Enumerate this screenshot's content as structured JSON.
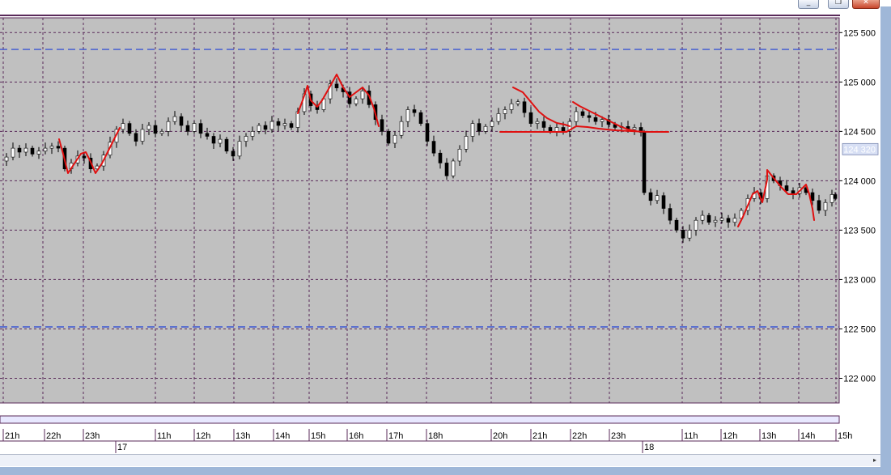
{
  "window": {
    "buttons": [
      {
        "name": "minimize-button",
        "glyph": "_"
      },
      {
        "name": "restore-button",
        "glyph": "❐"
      },
      {
        "name": "close-button",
        "glyph": "✕"
      }
    ]
  },
  "scrollbar": {
    "right_arrow": "▸"
  },
  "colors": {
    "plot_bg": "#c0c0c0",
    "grid": "#5a2a5a",
    "frame": "#5a2a5a",
    "level_line": "#1f3fd6",
    "bull_candle": "#ffffff",
    "bear_candle": "#000000",
    "annotation": "#e01010",
    "price_label_bg": "#d7dff4",
    "price_label_fg": "#ffffff"
  },
  "chart_data": {
    "type": "candlestick",
    "title": "",
    "ylim": [
      121750,
      125650
    ],
    "y_ticks": [
      "125 500",
      "125 000",
      "124 500",
      "124 000",
      "123 500",
      "123 000",
      "122 500",
      "122 000"
    ],
    "y_tick_values": [
      125500,
      125000,
      124500,
      124000,
      123500,
      123000,
      122500,
      122000
    ],
    "current_price_label": "124 320",
    "current_price": 124320,
    "horizontal_levels": [
      125330,
      122520
    ],
    "x_hour_labels": [
      "21h",
      "22h",
      "23h",
      "11h",
      "12h",
      "13h",
      "14h",
      "15h",
      "16h",
      "17h",
      "18h",
      "20h",
      "21h",
      "22h",
      "23h",
      "11h",
      "12h",
      "13h",
      "14h",
      "15h"
    ],
    "x_day_labels": [
      "17",
      "18"
    ],
    "price_path": [
      [
        0,
        124200
      ],
      [
        8,
        124240
      ],
      [
        16,
        124330
      ],
      [
        24,
        124290
      ],
      [
        32,
        124330
      ],
      [
        40,
        124270
      ],
      [
        48,
        124300
      ],
      [
        56,
        124330
      ],
      [
        64,
        124350
      ],
      [
        72,
        124330
      ],
      [
        80,
        124120
      ],
      [
        88,
        124180
      ],
      [
        96,
        124250
      ],
      [
        104,
        124230
      ],
      [
        112,
        124120
      ],
      [
        120,
        124150
      ],
      [
        128,
        124260
      ],
      [
        136,
        124390
      ],
      [
        144,
        124520
      ],
      [
        152,
        124580
      ],
      [
        160,
        124480
      ],
      [
        168,
        124400
      ],
      [
        176,
        124520
      ],
      [
        184,
        124560
      ],
      [
        192,
        124480
      ],
      [
        200,
        124500
      ],
      [
        208,
        124600
      ],
      [
        216,
        124650
      ],
      [
        224,
        124560
      ],
      [
        232,
        124500
      ],
      [
        240,
        124580
      ],
      [
        248,
        124480
      ],
      [
        256,
        124450
      ],
      [
        264,
        124380
      ],
      [
        272,
        124420
      ],
      [
        280,
        124300
      ],
      [
        288,
        124250
      ],
      [
        296,
        124400
      ],
      [
        304,
        124450
      ],
      [
        312,
        124500
      ],
      [
        320,
        124560
      ],
      [
        328,
        124520
      ],
      [
        336,
        124600
      ],
      [
        344,
        124560
      ],
      [
        352,
        124580
      ],
      [
        360,
        124540
      ],
      [
        368,
        124700
      ],
      [
        376,
        124880
      ],
      [
        384,
        124760
      ],
      [
        392,
        124720
      ],
      [
        400,
        124830
      ],
      [
        408,
        124980
      ],
      [
        416,
        124940
      ],
      [
        424,
        124900
      ],
      [
        432,
        124780
      ],
      [
        440,
        124830
      ],
      [
        448,
        124910
      ],
      [
        456,
        124770
      ],
      [
        464,
        124620
      ],
      [
        472,
        124500
      ],
      [
        480,
        124380
      ],
      [
        488,
        124460
      ],
      [
        496,
        124600
      ],
      [
        504,
        124720
      ],
      [
        512,
        124690
      ],
      [
        520,
        124580
      ],
      [
        528,
        124400
      ],
      [
        536,
        124280
      ],
      [
        544,
        124180
      ],
      [
        552,
        124050
      ],
      [
        560,
        124200
      ],
      [
        568,
        124320
      ],
      [
        576,
        124450
      ],
      [
        584,
        124580
      ],
      [
        592,
        124500
      ],
      [
        600,
        124550
      ],
      [
        608,
        124600
      ],
      [
        616,
        124680
      ],
      [
        624,
        124720
      ],
      [
        632,
        124780
      ],
      [
        640,
        124800
      ],
      [
        648,
        124690
      ],
      [
        656,
        124580
      ],
      [
        664,
        124600
      ],
      [
        672,
        124540
      ],
      [
        680,
        124500
      ],
      [
        688,
        124540
      ],
      [
        696,
        124500
      ],
      [
        704,
        124600
      ],
      [
        712,
        124700
      ],
      [
        720,
        124660
      ],
      [
        728,
        124640
      ],
      [
        736,
        124600
      ],
      [
        744,
        124620
      ],
      [
        752,
        124570
      ],
      [
        760,
        124540
      ],
      [
        768,
        124550
      ],
      [
        776,
        124520
      ],
      [
        784,
        124540
      ],
      [
        792,
        124490
      ],
      [
        796,
        123880
      ],
      [
        804,
        123800
      ],
      [
        812,
        123850
      ],
      [
        820,
        123720
      ],
      [
        828,
        123600
      ],
      [
        836,
        123500
      ],
      [
        844,
        123420
      ],
      [
        852,
        123500
      ],
      [
        860,
        123600
      ],
      [
        868,
        123650
      ],
      [
        876,
        123580
      ],
      [
        884,
        123600
      ],
      [
        892,
        123620
      ],
      [
        900,
        123580
      ],
      [
        908,
        123620
      ],
      [
        916,
        123700
      ],
      [
        924,
        123820
      ],
      [
        932,
        123880
      ],
      [
        940,
        123820
      ],
      [
        948,
        124050
      ],
      [
        956,
        124000
      ],
      [
        964,
        123950
      ],
      [
        972,
        123900
      ],
      [
        980,
        123870
      ],
      [
        988,
        123930
      ],
      [
        996,
        123880
      ],
      [
        1004,
        123800
      ],
      [
        1012,
        123700
      ],
      [
        1020,
        123780
      ],
      [
        1028,
        123860
      ],
      [
        1032,
        123820
      ]
    ]
  }
}
